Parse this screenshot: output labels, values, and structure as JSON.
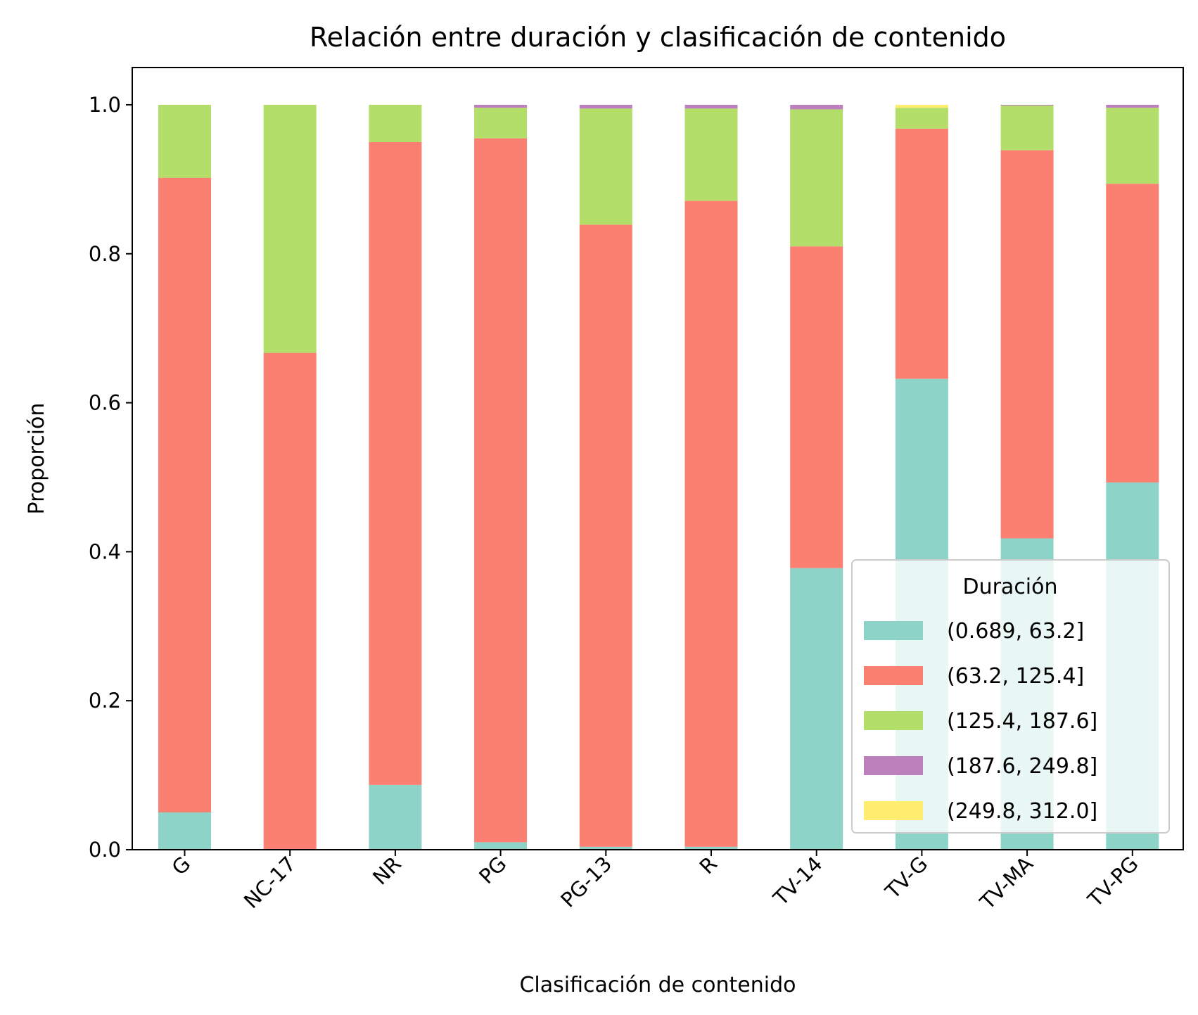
{
  "chart_data": {
    "type": "bar",
    "stacked": true,
    "title": "Relación entre duración y clasificación de contenido",
    "xlabel": "Clasificación de contenido",
    "ylabel": "Proporción",
    "ylim": [
      0,
      1.05
    ],
    "yticks": [
      "0.0",
      "0.2",
      "0.4",
      "0.6",
      "0.8",
      "1.0"
    ],
    "grid": false,
    "categories": [
      "G",
      "NC-17",
      "NR",
      "PG",
      "PG-13",
      "R",
      "TV-14",
      "TV-G",
      "TV-MA",
      "TV-PG"
    ],
    "series": [
      {
        "name": "(0.689, 63.2]",
        "color": "#8dd3c7",
        "values": [
          0.05,
          0.0,
          0.087,
          0.01,
          0.004,
          0.004,
          0.378,
          0.632,
          0.418,
          0.493
        ]
      },
      {
        "name": "(63.2, 125.4]",
        "color": "#fb8072",
        "values": [
          0.852,
          0.667,
          0.863,
          0.945,
          0.835,
          0.867,
          0.432,
          0.336,
          0.521,
          0.401
        ]
      },
      {
        "name": "(125.4, 187.6]",
        "color": "#b3de69",
        "values": [
          0.098,
          0.333,
          0.05,
          0.041,
          0.156,
          0.124,
          0.184,
          0.028,
          0.06,
          0.102
        ]
      },
      {
        "name": "(187.6, 249.8]",
        "color": "#bc80bd",
        "values": [
          0.0,
          0.0,
          0.0,
          0.004,
          0.005,
          0.005,
          0.006,
          0.0,
          0.001,
          0.004
        ]
      },
      {
        "name": "(249.8, 312.0]",
        "color": "#ffed6f",
        "values": [
          0.0,
          0.0,
          0.0,
          0.0,
          0.0,
          0.0,
          0.0,
          0.004,
          0.0,
          0.0
        ]
      }
    ],
    "legend": {
      "title": "Duración",
      "position": "lower right"
    }
  }
}
